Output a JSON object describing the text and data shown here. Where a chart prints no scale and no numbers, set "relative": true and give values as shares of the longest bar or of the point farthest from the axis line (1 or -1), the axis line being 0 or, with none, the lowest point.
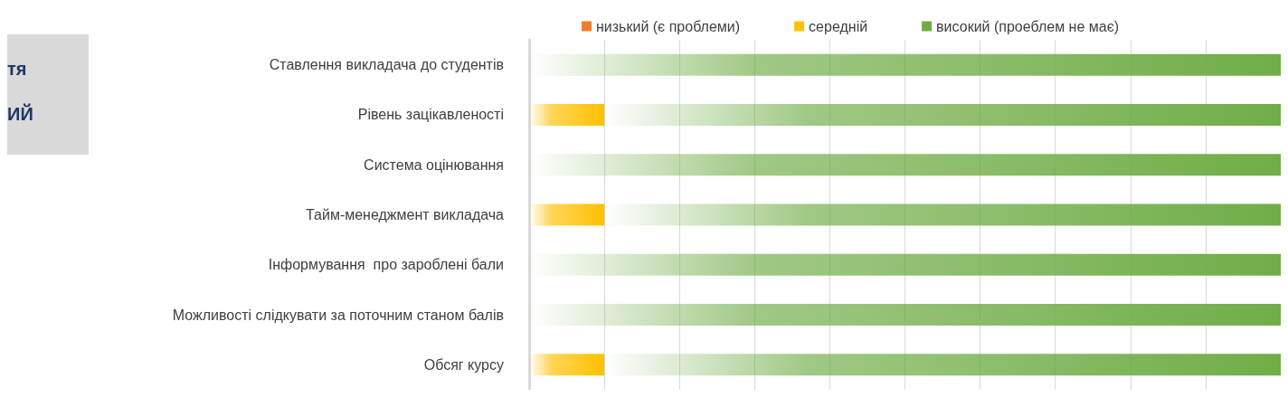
{
  "chart_data": {
    "type": "bar",
    "orientation": "horizontal",
    "stacked": true,
    "relative": true,
    "grid": "x",
    "legend": "top",
    "annotations": [
      "тя",
      "ИЙ"
    ],
    "categories": [
      "Ставлення викладача до студентів",
      "Рівень зацікавленості",
      "Система оцінювання",
      "Тайм-менеджмент викладача",
      "Інформування  про зароблені бали",
      "Можливості слідкувати за поточним станом балів",
      "Обсяг курсу"
    ],
    "series": [
      {
        "name": "низький (є проблеми)",
        "color": "#ed7d31",
        "values": [
          0,
          0,
          0,
          0,
          0,
          0,
          0
        ]
      },
      {
        "name": "середній",
        "color": "#ffc000",
        "values": [
          0,
          0.1,
          0,
          0.1,
          0,
          0,
          0.1
        ]
      },
      {
        "name": "високий (проеблем не має)",
        "color": "#70ad47",
        "values": [
          1,
          0.9,
          1,
          0.9,
          1,
          1,
          0.9
        ]
      }
    ]
  }
}
